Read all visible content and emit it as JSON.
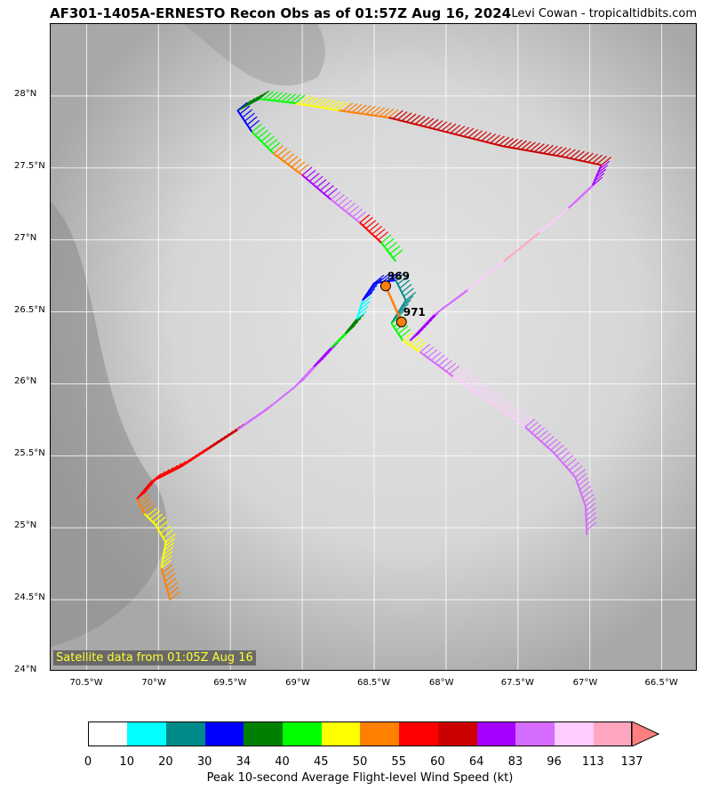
{
  "header": {
    "title": "AF301-1405A-ERNESTO Recon Obs as of 01:57Z Aug 16, 2024",
    "credit": "Levi Cowan - tropicaltidbits.com"
  },
  "map": {
    "lon_range": [
      -70.75,
      -66.25
    ],
    "lat_range": [
      24.0,
      28.5
    ],
    "x_ticks": [
      {
        "value": -70.5,
        "label": "70.5°W"
      },
      {
        "value": -70.0,
        "label": "70°W"
      },
      {
        "value": -69.5,
        "label": "69.5°W"
      },
      {
        "value": -69.0,
        "label": "69°W"
      },
      {
        "value": -68.5,
        "label": "68.5°W"
      },
      {
        "value": -68.0,
        "label": "68°W"
      },
      {
        "value": -67.5,
        "label": "67.5°W"
      },
      {
        "value": -67.0,
        "label": "67°W"
      },
      {
        "value": -66.5,
        "label": "66.5°W"
      }
    ],
    "y_ticks": [
      {
        "value": 24.0,
        "label": "24°N"
      },
      {
        "value": 24.5,
        "label": "24.5°N"
      },
      {
        "value": 25.0,
        "label": "25°N"
      },
      {
        "value": 25.5,
        "label": "25.5°N"
      },
      {
        "value": 26.0,
        "label": "26°N"
      },
      {
        "value": 26.5,
        "label": "26.5°N"
      },
      {
        "value": 27.0,
        "label": "27°N"
      },
      {
        "value": 27.5,
        "label": "27.5°N"
      },
      {
        "value": 28.0,
        "label": "28°N"
      }
    ],
    "satellite_label": "Satellite data from 01:05Z Aug 16",
    "background_color": "#bdbdbd",
    "centers": [
      {
        "lon": -68.42,
        "lat": 26.68,
        "label": "969",
        "color": "#ff7f0e"
      },
      {
        "lon": -68.31,
        "lat": 26.43,
        "label": "971",
        "color": "#ff7f0e"
      }
    ],
    "track": [
      {
        "lon": -69.92,
        "lat": 24.5,
        "bin": 7
      },
      {
        "lon": -69.98,
        "lat": 24.72,
        "bin": 6
      },
      {
        "lon": -69.95,
        "lat": 24.9,
        "bin": 6
      },
      {
        "lon": -70.02,
        "lat": 25.02,
        "bin": 6
      },
      {
        "lon": -70.1,
        "lat": 25.1,
        "bin": 7
      },
      {
        "lon": -70.15,
        "lat": 25.2,
        "bin": 8
      },
      {
        "lon": -70.05,
        "lat": 25.32,
        "bin": 8
      },
      {
        "lon": -69.85,
        "lat": 25.42,
        "bin": 8
      },
      {
        "lon": -69.65,
        "lat": 25.55,
        "bin": 9
      },
      {
        "lon": -69.45,
        "lat": 25.68,
        "bin": 11
      },
      {
        "lon": -69.25,
        "lat": 25.82,
        "bin": 11
      },
      {
        "lon": -69.05,
        "lat": 25.98,
        "bin": 11
      },
      {
        "lon": -68.92,
        "lat": 26.12,
        "bin": 10
      },
      {
        "lon": -68.8,
        "lat": 26.25,
        "bin": 5
      },
      {
        "lon": -68.7,
        "lat": 26.35,
        "bin": 4
      },
      {
        "lon": -68.62,
        "lat": 26.45,
        "bin": 1
      },
      {
        "lon": -68.58,
        "lat": 26.58,
        "bin": 3
      },
      {
        "lon": -68.5,
        "lat": 26.7,
        "bin": 3
      },
      {
        "lon": -68.35,
        "lat": 26.72,
        "bin": 2
      },
      {
        "lon": -68.28,
        "lat": 26.58,
        "bin": 2
      },
      {
        "lon": -68.38,
        "lat": 26.42,
        "bin": 5
      },
      {
        "lon": -68.3,
        "lat": 26.3,
        "bin": 6
      },
      {
        "lon": -68.18,
        "lat": 26.22,
        "bin": 11
      },
      {
        "lon": -67.95,
        "lat": 26.05,
        "bin": 12
      },
      {
        "lon": -67.7,
        "lat": 25.88,
        "bin": 12
      },
      {
        "lon": -67.45,
        "lat": 25.7,
        "bin": 11
      },
      {
        "lon": -67.25,
        "lat": 25.52,
        "bin": 11
      },
      {
        "lon": -67.1,
        "lat": 25.35,
        "bin": 11
      },
      {
        "lon": -67.03,
        "lat": 25.15,
        "bin": 11
      },
      {
        "lon": -67.02,
        "lat": 24.95,
        "bin": 10
      }
    ],
    "track2": [
      {
        "lon": -68.25,
        "lat": 26.3,
        "bin": 10
      },
      {
        "lon": -68.08,
        "lat": 26.48,
        "bin": 11
      },
      {
        "lon": -67.85,
        "lat": 26.65,
        "bin": 12
      },
      {
        "lon": -67.6,
        "lat": 26.85,
        "bin": 13
      },
      {
        "lon": -67.35,
        "lat": 27.05,
        "bin": 12
      },
      {
        "lon": -67.15,
        "lat": 27.22,
        "bin": 11
      },
      {
        "lon": -66.98,
        "lat": 27.38,
        "bin": 10
      },
      {
        "lon": -66.92,
        "lat": 27.52,
        "bin": 9
      },
      {
        "lon": -67.2,
        "lat": 27.58,
        "bin": 9
      },
      {
        "lon": -67.6,
        "lat": 27.65,
        "bin": 9
      },
      {
        "lon": -68.0,
        "lat": 27.75,
        "bin": 9
      },
      {
        "lon": -68.4,
        "lat": 27.85,
        "bin": 7
      },
      {
        "lon": -68.75,
        "lat": 27.9,
        "bin": 6
      },
      {
        "lon": -69.05,
        "lat": 27.95,
        "bin": 5
      },
      {
        "lon": -69.3,
        "lat": 27.98,
        "bin": 4
      },
      {
        "lon": -69.45,
        "lat": 27.9,
        "bin": 3
      },
      {
        "lon": -69.35,
        "lat": 27.75,
        "bin": 5
      },
      {
        "lon": -69.2,
        "lat": 27.6,
        "bin": 7
      },
      {
        "lon": -69.0,
        "lat": 27.45,
        "bin": 10
      },
      {
        "lon": -68.8,
        "lat": 27.28,
        "bin": 11
      },
      {
        "lon": -68.6,
        "lat": 27.12,
        "bin": 8
      },
      {
        "lon": -68.45,
        "lat": 26.98,
        "bin": 5
      },
      {
        "lon": -68.35,
        "lat": 26.85,
        "bin": 5
      }
    ]
  },
  "colorbar": {
    "label": "Peak 10-second Average Flight-level Wind Speed (kt)",
    "ticks": [
      "0",
      "10",
      "20",
      "30",
      "34",
      "40",
      "45",
      "50",
      "55",
      "60",
      "64",
      "83",
      "96",
      "113",
      "137"
    ],
    "colors": [
      "#ffffff",
      "#00ffff",
      "#008b8b",
      "#0000ff",
      "#008000",
      "#00ff00",
      "#ffff00",
      "#ff7f00",
      "#ff0000",
      "#cc0000",
      "#a600ff",
      "#d56bff",
      "#ffccff",
      "#ffa6bf"
    ],
    "extend_color": "#ff7f7f"
  }
}
